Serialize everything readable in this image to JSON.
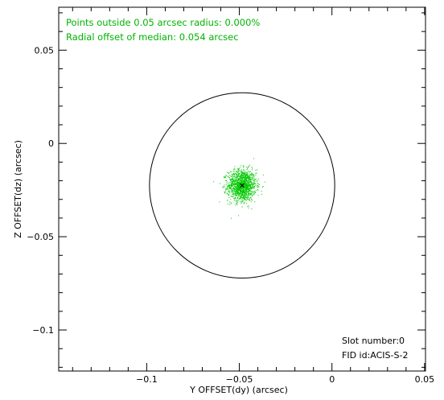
{
  "chart_data": {
    "type": "scatter",
    "xlabel": "Y OFFSET(dy) (arcsec)",
    "ylabel": "Z OFFSET(dz) (arcsec)",
    "xlim": [
      -0.1475,
      0.0505
    ],
    "ylim": [
      -0.122,
      0.073
    ],
    "x_ticks": [
      -0.1,
      -0.05,
      0,
      0.05
    ],
    "x_tick_labels": [
      "−0.1",
      "−0.05",
      "0",
      "0.05"
    ],
    "y_ticks": [
      -0.1,
      -0.05,
      0,
      0.05
    ],
    "y_tick_labels": [
      "−0.1",
      "−0.05",
      "0",
      "0.05"
    ],
    "grid": false,
    "annotations": {
      "points_outside": "Points outside 0.05 arcsec radius: 0.000%",
      "radial_offset": "Radial offset of median: 0.054 arcsec",
      "slot_number": "Slot number:0",
      "fid_id": "FID id:ACIS-S-2"
    },
    "median": {
      "x": -0.0485,
      "y": -0.0225
    },
    "circle": {
      "center_x": -0.0485,
      "center_y": -0.0225,
      "radius": 0.05
    },
    "cloud": {
      "center_x": -0.0485,
      "center_y": -0.0225,
      "std_x": 0.0038,
      "std_y": 0.0042,
      "count": 1400
    },
    "colors": {
      "points": "#00c800",
      "text": "#00b400",
      "circle": "#000000",
      "median_marker": "#000000"
    }
  }
}
